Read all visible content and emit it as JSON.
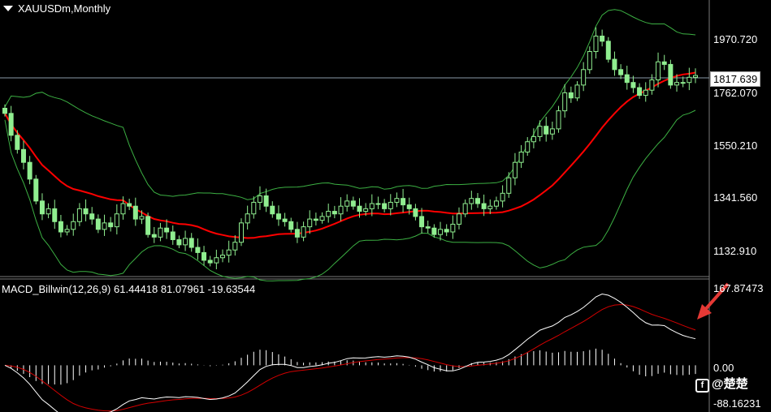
{
  "header": {
    "title": "XAUUSDm,Monthly"
  },
  "price_axis": {
    "ticks": [
      "1970.720",
      "1762.070",
      "1550.210",
      "1341.560",
      "1132.910"
    ],
    "current_price": "1817.639"
  },
  "macd_panel": {
    "title": "MACD_Billwin(12,26,9) 61.44418 81.07961 -19.63544",
    "ticks": [
      "167.87473",
      "0.00",
      "-88.16231"
    ]
  },
  "watermark": {
    "text": "@楚楚"
  },
  "colors": {
    "background": "#000000",
    "candle": "#90ee90",
    "moving_average": "#ff0000",
    "bollinger": "#3cb043",
    "macd_line": "#ffffff",
    "signal_line": "#d40000",
    "arrow": "#e53935"
  },
  "chart_data": [
    {
      "type": "candlestick",
      "title": "XAUUSDm,Monthly",
      "ylim": [
        1040,
        2110
      ],
      "overlays": [
        "Bollinger Bands",
        "Moving Average"
      ],
      "approx_close_series": [
        1670,
        1585,
        1530,
        1480,
        1415,
        1330,
        1280,
        1300,
        1250,
        1210,
        1220,
        1250,
        1300,
        1280,
        1260,
        1220,
        1245,
        1230,
        1280,
        1320,
        1310,
        1260,
        1270,
        1200,
        1190,
        1225,
        1210,
        1180,
        1160,
        1185,
        1150,
        1130,
        1100,
        1090,
        1110,
        1120,
        1140,
        1170,
        1245,
        1280,
        1325,
        1350,
        1310,
        1280,
        1260,
        1250,
        1220,
        1190,
        1230,
        1260,
        1255,
        1270,
        1290,
        1280,
        1310,
        1330,
        1310,
        1290,
        1300,
        1320,
        1320,
        1300,
        1325,
        1340,
        1315,
        1300,
        1270,
        1230,
        1225,
        1200,
        1220,
        1210,
        1240,
        1280,
        1320,
        1340,
        1320,
        1300,
        1310,
        1330,
        1360,
        1420,
        1480,
        1520,
        1560,
        1580,
        1620,
        1590,
        1610,
        1680,
        1750,
        1730,
        1780,
        1840,
        1910,
        1970,
        1950,
        1880,
        1840,
        1820,
        1790,
        1770,
        1740,
        1760,
        1800,
        1870,
        1860,
        1780,
        1790,
        1790,
        1810,
        1817
      ]
    },
    {
      "type": "line",
      "title": "MACD_Billwin(12,26,9)",
      "ylim": [
        -88.16231,
        167.87473
      ],
      "series": [
        {
          "name": "MACD",
          "current": 61.44418
        },
        {
          "name": "Signal",
          "current": 81.07961
        },
        {
          "name": "Histogram",
          "current": -19.63544
        }
      ]
    }
  ]
}
